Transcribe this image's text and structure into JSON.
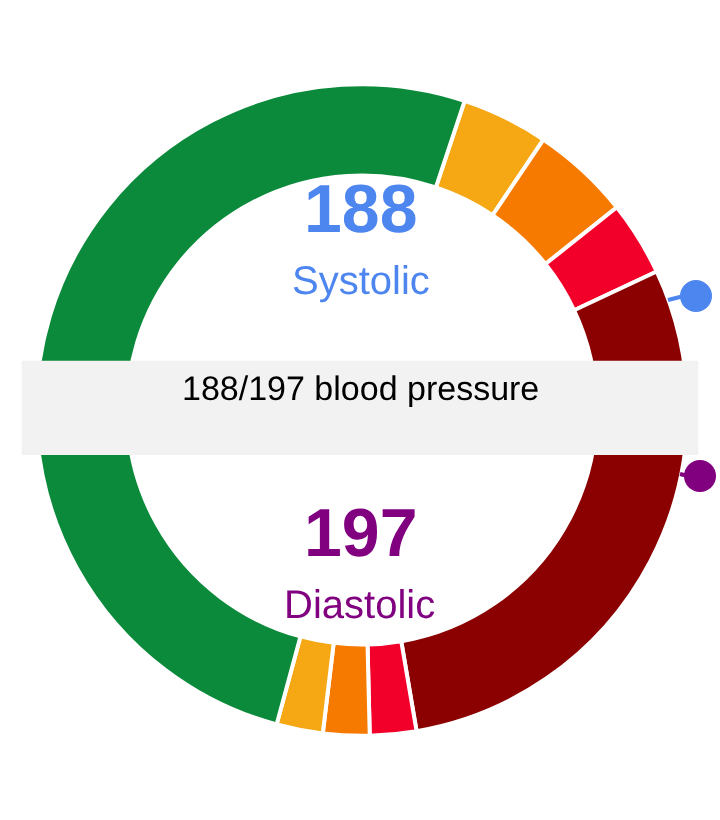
{
  "chart_data": {
    "type": "donut",
    "categories": [
      null,
      null,
      null,
      null,
      null,
      null,
      null,
      null
    ],
    "values": [
      4.3,
      4.9,
      3.7,
      29.3,
      2.3,
      2.3,
      2.3,
      50.9
    ],
    "colors": [
      "#f5a814",
      "#f77a00",
      "#f2002a",
      "#8b0000",
      "#f2002a",
      "#f77a00",
      "#f5a814",
      "#0a8a3a"
    ],
    "annotations": [
      "188",
      "Systolic",
      "188/197 blood pressure",
      "197",
      "Diastolic"
    ]
  }
}
